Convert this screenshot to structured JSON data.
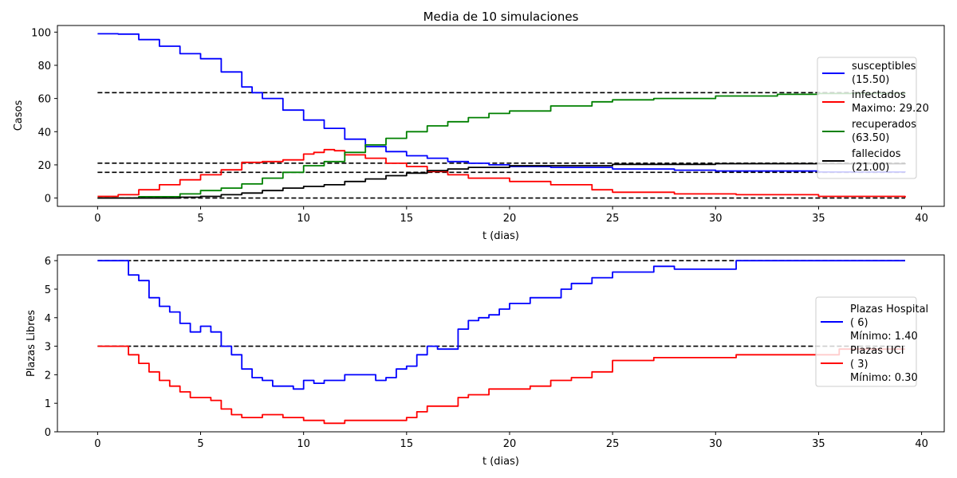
{
  "chart_data": [
    {
      "type": "line",
      "title": "Media de 10 simulaciones",
      "xlabel": "t (dias)",
      "ylabel": "Casos",
      "xlim": [
        -1.95,
        41.1
      ],
      "ylim": [
        -5,
        104
      ],
      "xticks": [
        0,
        5,
        10,
        15,
        20,
        25,
        30,
        35,
        40
      ],
      "yticks": [
        0,
        20,
        40,
        60,
        80,
        100
      ],
      "grid": false,
      "legend_position": "right",
      "reference_lines": [
        63.5,
        21.0,
        15.5,
        0
      ],
      "series": [
        {
          "name": "susceptibles",
          "legend_lines": [
            "susceptibles",
            "(15.50)"
          ],
          "color": "#0000ff",
          "points": [
            [
              0,
              99
            ],
            [
              1,
              98.8
            ],
            [
              2,
              95.5
            ],
            [
              3,
              91.5
            ],
            [
              4,
              87
            ],
            [
              5,
              84
            ],
            [
              6,
              76
            ],
            [
              7,
              67
            ],
            [
              7.5,
              63.5
            ],
            [
              8,
              60
            ],
            [
              9,
              53
            ],
            [
              10,
              47
            ],
            [
              11,
              42
            ],
            [
              12,
              35.5
            ],
            [
              13,
              31
            ],
            [
              14,
              28
            ],
            [
              15,
              25.5
            ],
            [
              16,
              24
            ],
            [
              17,
              22
            ],
            [
              18,
              21
            ],
            [
              19,
              20
            ],
            [
              20,
              19
            ],
            [
              22,
              18.5
            ],
            [
              25,
              17.5
            ],
            [
              28,
              16.8
            ],
            [
              30,
              16.3
            ],
            [
              35,
              15.7
            ],
            [
              39.2,
              15.5
            ]
          ]
        },
        {
          "name": "infectados",
          "legend_lines": [
            "infectados",
            "Maximo: 29.20"
          ],
          "color": "#ff0000",
          "points": [
            [
              0,
              1
            ],
            [
              1,
              2
            ],
            [
              2,
              5
            ],
            [
              3,
              8
            ],
            [
              4,
              11
            ],
            [
              5,
              14
            ],
            [
              6,
              17
            ],
            [
              7,
              21.5
            ],
            [
              8,
              22
            ],
            [
              9,
              23
            ],
            [
              10,
              26.5
            ],
            [
              10.5,
              27.5
            ],
            [
              11,
              29.2
            ],
            [
              11.5,
              28.5
            ],
            [
              12,
              26
            ],
            [
              13,
              24
            ],
            [
              14,
              21
            ],
            [
              15,
              19
            ],
            [
              16,
              16
            ],
            [
              17,
              14
            ],
            [
              18,
              12
            ],
            [
              20,
              10
            ],
            [
              22,
              8
            ],
            [
              24,
              5
            ],
            [
              25,
              3.5
            ],
            [
              28,
              2.5
            ],
            [
              31,
              2
            ],
            [
              35,
              1
            ],
            [
              39.2,
              0.3
            ]
          ]
        },
        {
          "name": "recuperados",
          "legend_lines": [
            "recuperados",
            "(63.50)"
          ],
          "color": "#008000",
          "points": [
            [
              0,
              0
            ],
            [
              2,
              0.8
            ],
            [
              4,
              2.5
            ],
            [
              5,
              4.5
            ],
            [
              6,
              6
            ],
            [
              7,
              8.5
            ],
            [
              8,
              12
            ],
            [
              9,
              15.5
            ],
            [
              10,
              19.5
            ],
            [
              11,
              22
            ],
            [
              12,
              27.5
            ],
            [
              13,
              32
            ],
            [
              14,
              36
            ],
            [
              15,
              40
            ],
            [
              16,
              43.5
            ],
            [
              17,
              46
            ],
            [
              18,
              48.5
            ],
            [
              19,
              51
            ],
            [
              20,
              52.5
            ],
            [
              22,
              55.5
            ],
            [
              24,
              58
            ],
            [
              25,
              59.2
            ],
            [
              27,
              60
            ],
            [
              30,
              61.5
            ],
            [
              33,
              62.5
            ],
            [
              35,
              63
            ],
            [
              39.2,
              63.5
            ]
          ]
        },
        {
          "name": "fallecidos",
          "legend_lines": [
            "fallecidos",
            "(21.00)"
          ],
          "color": "#000000",
          "points": [
            [
              0,
              0
            ],
            [
              4,
              0.5
            ],
            [
              5,
              1
            ],
            [
              6,
              2
            ],
            [
              7,
              3
            ],
            [
              8,
              4.5
            ],
            [
              9,
              6
            ],
            [
              10,
              7
            ],
            [
              11,
              8
            ],
            [
              12,
              10
            ],
            [
              13,
              11.5
            ],
            [
              14,
              13.5
            ],
            [
              15,
              15
            ],
            [
              16,
              16.5
            ],
            [
              17,
              17.5
            ],
            [
              18,
              18.5
            ],
            [
              20,
              19.5
            ],
            [
              25,
              20.3
            ],
            [
              30,
              20.7
            ],
            [
              39.2,
              21
            ]
          ]
        }
      ]
    },
    {
      "type": "line",
      "title": "",
      "xlabel": "t (dias)",
      "ylabel": "Plazas Libres",
      "xlim": [
        -1.95,
        41.1
      ],
      "ylim": [
        0,
        6.2
      ],
      "xticks": [
        0,
        5,
        10,
        15,
        20,
        25,
        30,
        35,
        40
      ],
      "yticks": [
        0,
        1,
        2,
        3,
        4,
        5,
        6
      ],
      "grid": false,
      "legend_position": "right",
      "reference_lines": [
        6,
        3
      ],
      "series": [
        {
          "name": "Plazas Hospital",
          "legend_lines": [
            "Plazas Hospital",
            "(  6)",
            "Mínimo:  1.40"
          ],
          "color": "#0000ff",
          "points": [
            [
              0,
              6
            ],
            [
              1.2,
              6
            ],
            [
              1.5,
              5.5
            ],
            [
              2,
              5.3
            ],
            [
              2.5,
              4.7
            ],
            [
              3,
              4.4
            ],
            [
              3.5,
              4.2
            ],
            [
              4,
              3.8
            ],
            [
              4.5,
              3.5
            ],
            [
              5,
              3.7
            ],
            [
              5.5,
              3.5
            ],
            [
              6,
              3
            ],
            [
              6.5,
              2.7
            ],
            [
              7,
              2.2
            ],
            [
              7.5,
              1.9
            ],
            [
              8,
              1.8
            ],
            [
              8.5,
              1.6
            ],
            [
              9,
              1.6
            ],
            [
              9.5,
              1.5
            ],
            [
              10,
              1.8
            ],
            [
              10.5,
              1.7
            ],
            [
              11,
              1.8
            ],
            [
              11.5,
              1.8
            ],
            [
              12,
              2
            ],
            [
              13,
              2
            ],
            [
              13.5,
              1.8
            ],
            [
              14,
              1.9
            ],
            [
              14.5,
              2.2
            ],
            [
              15,
              2.3
            ],
            [
              15.5,
              2.7
            ],
            [
              16,
              3
            ],
            [
              16.5,
              2.9
            ],
            [
              17,
              2.9
            ],
            [
              17.5,
              3.6
            ],
            [
              18,
              3.9
            ],
            [
              18.5,
              4
            ],
            [
              19,
              4.1
            ],
            [
              19.5,
              4.3
            ],
            [
              20,
              4.5
            ],
            [
              21,
              4.7
            ],
            [
              22,
              4.7
            ],
            [
              22.5,
              5
            ],
            [
              23,
              5.2
            ],
            [
              24,
              5.4
            ],
            [
              25,
              5.6
            ],
            [
              26,
              5.6
            ],
            [
              27,
              5.8
            ],
            [
              28,
              5.7
            ],
            [
              30,
              5.7
            ],
            [
              31,
              6
            ],
            [
              39.2,
              6
            ]
          ]
        },
        {
          "name": "Plazas UCI",
          "legend_lines": [
            "Plazas UCI",
            "(  3)",
            "Mínimo:  0.30"
          ],
          "color": "#ff0000",
          "points": [
            [
              0,
              3
            ],
            [
              1.2,
              3
            ],
            [
              1.5,
              2.7
            ],
            [
              2,
              2.4
            ],
            [
              2.5,
              2.1
            ],
            [
              3,
              1.8
            ],
            [
              3.5,
              1.6
            ],
            [
              4,
              1.4
            ],
            [
              4.5,
              1.2
            ],
            [
              5,
              1.2
            ],
            [
              5.5,
              1.1
            ],
            [
              6,
              0.8
            ],
            [
              6.5,
              0.6
            ],
            [
              7,
              0.5
            ],
            [
              8,
              0.6
            ],
            [
              9,
              0.5
            ],
            [
              10,
              0.4
            ],
            [
              11,
              0.3
            ],
            [
              12,
              0.4
            ],
            [
              13,
              0.4
            ],
            [
              14,
              0.4
            ],
            [
              15,
              0.5
            ],
            [
              15.5,
              0.7
            ],
            [
              16,
              0.9
            ],
            [
              17,
              0.9
            ],
            [
              17.5,
              1.2
            ],
            [
              18,
              1.3
            ],
            [
              19,
              1.5
            ],
            [
              20,
              1.5
            ],
            [
              21,
              1.6
            ],
            [
              22,
              1.8
            ],
            [
              23,
              1.9
            ],
            [
              24,
              2.1
            ],
            [
              25,
              2.5
            ],
            [
              26.5,
              2.5
            ],
            [
              27,
              2.6
            ],
            [
              30,
              2.6
            ],
            [
              31,
              2.7
            ],
            [
              35,
              2.7
            ],
            [
              36,
              2.9
            ],
            [
              39.2,
              2.9
            ]
          ]
        }
      ]
    }
  ]
}
